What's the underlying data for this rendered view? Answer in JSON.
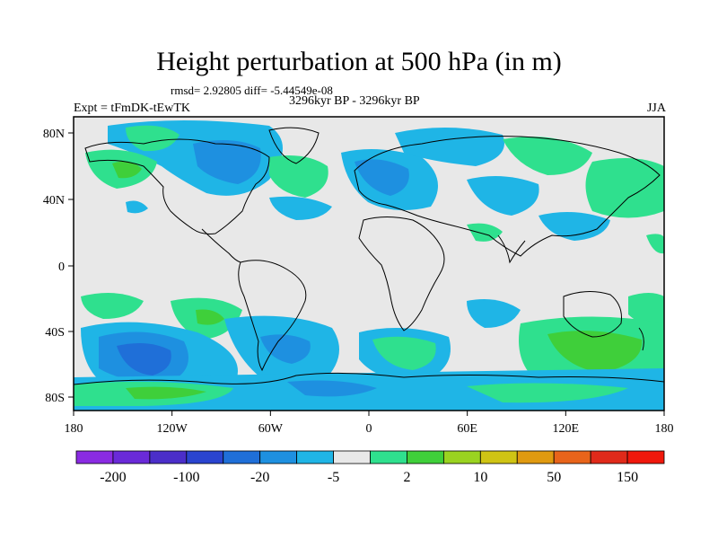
{
  "title": "Height perturbation at 500 hPa (in m)",
  "stats": "rmsd= 2.92805 diff= -5.44549e-08",
  "expt": "Expt = tFmDK-tEwTK",
  "period": "3296kyr BP - 3296kyr BP",
  "season": "JJA",
  "y_ticks": [
    "80N",
    "40N",
    "0",
    "40S",
    "80S"
  ],
  "x_ticks": [
    "180",
    "120W",
    "60W",
    "0",
    "60E",
    "120E",
    "180"
  ],
  "colorbar": {
    "colors": [
      "#8a2be2",
      "#6a2ad8",
      "#4b2ec9",
      "#2a44cf",
      "#1f6fd8",
      "#1e90e0",
      "#1fb5e6",
      "#e8e8e8",
      "#2fe08e",
      "#3fcf3a",
      "#9ad320",
      "#cfc414",
      "#e09a10",
      "#e8641a",
      "#e02a1a",
      "#f0180c"
    ],
    "labels": [
      "-200",
      "-100",
      "-20",
      "-5",
      "2",
      "10",
      "50",
      "150"
    ]
  },
  "map": {
    "background": "#e8e8e8",
    "colors": {
      "light_blue": "#1fb5e6",
      "blue": "#1e90e0",
      "dark_blue": "#1f6fd8",
      "green": "#2fe08e",
      "dark_green": "#3fcf3a"
    }
  }
}
